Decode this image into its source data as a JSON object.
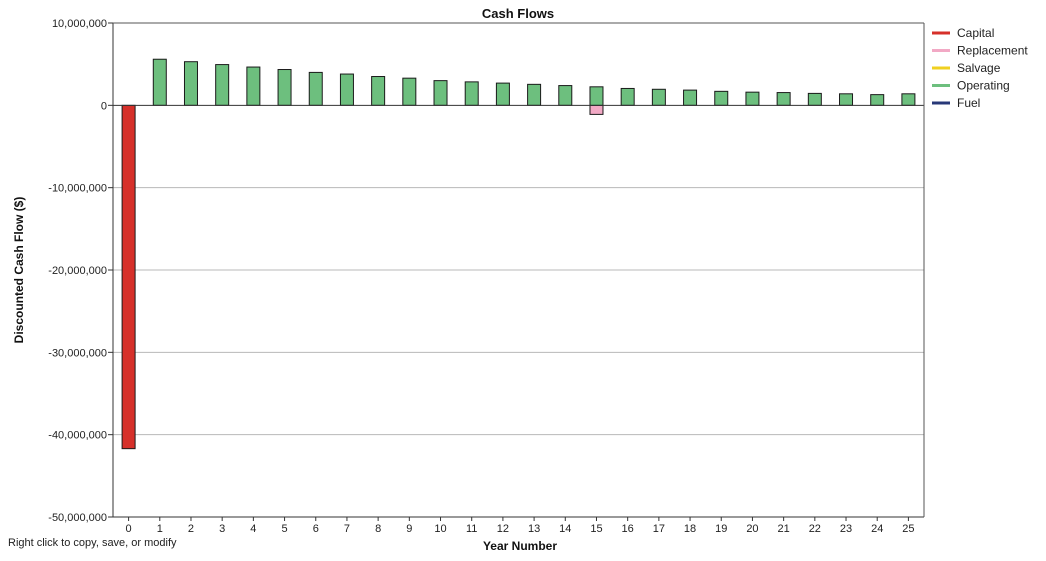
{
  "footer_hint": "Right click to copy, save, or modify",
  "colors": {
    "capital": "#d6302a",
    "replacement": "#f2a9c5",
    "salvage": "#f0d020",
    "operating": "#6dbf7e",
    "fuel": "#283878",
    "gridline": "#b8b8b8",
    "bar_outline": "#1a1a1a"
  },
  "chart_data": {
    "type": "bar",
    "title": "Cash Flows",
    "xlabel": "Year Number",
    "ylabel": "Discounted Cash Flow ($)",
    "ylim": [
      -50000000,
      10000000
    ],
    "yticks": [
      10000000,
      0,
      -10000000,
      -20000000,
      -30000000,
      -40000000,
      -50000000
    ],
    "ytick_labels": [
      "10,000,000",
      "0",
      "-10,000,000",
      "-20,000,000",
      "-30,000,000",
      "-40,000,000",
      "-50,000,000"
    ],
    "grid": true,
    "legend_position": "right",
    "categories": [
      "0",
      "1",
      "2",
      "3",
      "4",
      "5",
      "6",
      "7",
      "8",
      "9",
      "10",
      "11",
      "12",
      "13",
      "14",
      "15",
      "16",
      "17",
      "18",
      "19",
      "20",
      "21",
      "22",
      "23",
      "24",
      "25"
    ],
    "series": [
      {
        "name": "Capital",
        "color_key": "capital",
        "values": [
          -41700000,
          0,
          0,
          0,
          0,
          0,
          0,
          0,
          0,
          0,
          0,
          0,
          0,
          0,
          0,
          0,
          0,
          0,
          0,
          0,
          0,
          0,
          0,
          0,
          0,
          0
        ]
      },
      {
        "name": "Replacement",
        "color_key": "replacement",
        "values": [
          0,
          0,
          0,
          0,
          0,
          0,
          0,
          0,
          0,
          0,
          0,
          0,
          0,
          0,
          0,
          -1100000,
          0,
          0,
          0,
          0,
          0,
          0,
          0,
          0,
          0,
          0
        ]
      },
      {
        "name": "Salvage",
        "color_key": "salvage",
        "values": [
          0,
          0,
          0,
          0,
          0,
          0,
          0,
          0,
          0,
          0,
          0,
          0,
          0,
          0,
          0,
          0,
          0,
          0,
          0,
          0,
          0,
          0,
          0,
          0,
          0,
          0
        ]
      },
      {
        "name": "Operating",
        "color_key": "operating",
        "values": [
          0,
          5600000,
          5300000,
          4950000,
          4650000,
          4350000,
          4000000,
          3800000,
          3500000,
          3300000,
          3000000,
          2850000,
          2700000,
          2550000,
          2400000,
          2250000,
          2050000,
          1950000,
          1850000,
          1700000,
          1600000,
          1550000,
          1450000,
          1400000,
          1300000,
          1400000
        ]
      },
      {
        "name": "Fuel",
        "color_key": "fuel",
        "values": [
          0,
          0,
          0,
          0,
          0,
          0,
          0,
          0,
          0,
          0,
          0,
          0,
          0,
          0,
          0,
          0,
          0,
          0,
          0,
          0,
          0,
          0,
          0,
          0,
          0,
          0
        ]
      }
    ]
  }
}
